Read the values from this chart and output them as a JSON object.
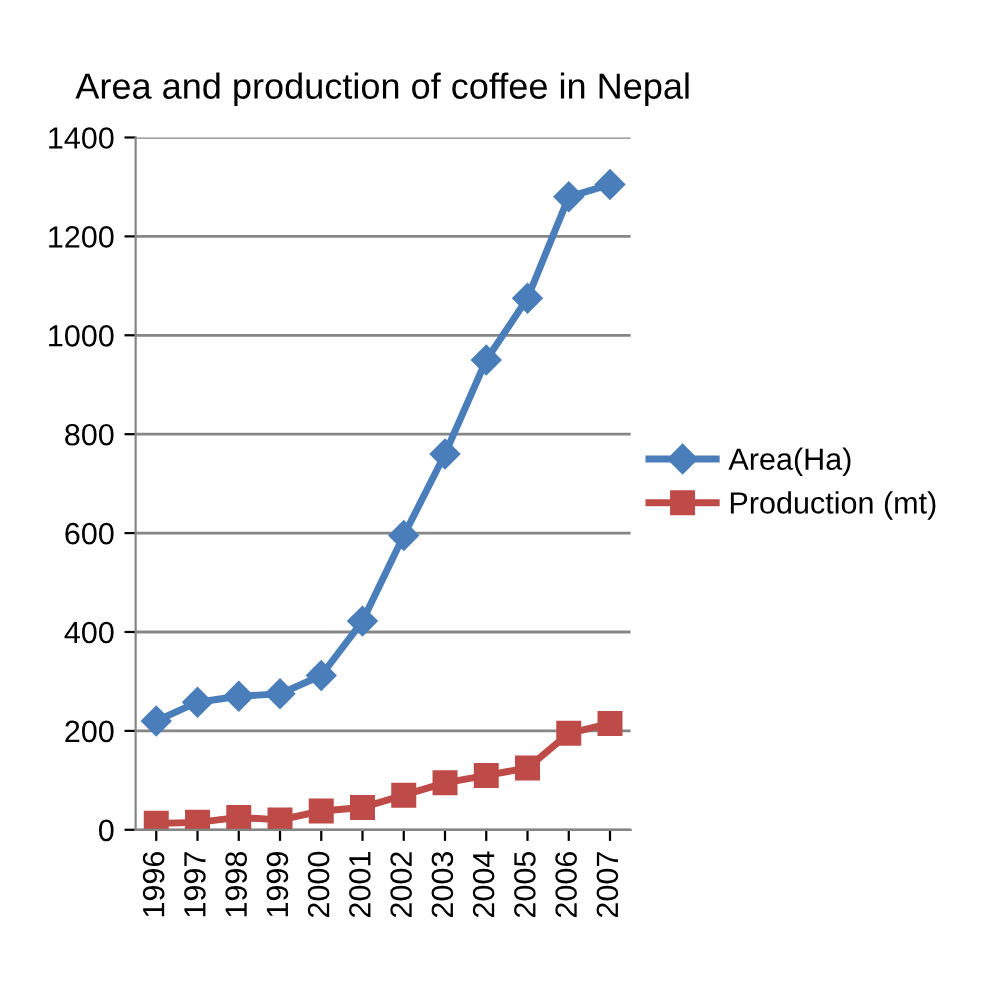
{
  "chart_data": {
    "type": "line",
    "title": "Area and production of coffee in Nepal",
    "categories": [
      "1996",
      "1997",
      "1998",
      "1999",
      "2000",
      "2001",
      "2002",
      "2003",
      "2004",
      "2005",
      "2006",
      "2007"
    ],
    "series": [
      {
        "name": "Area(Ha)",
        "color": "#4a7ebb",
        "marker": "diamond",
        "values": [
          220,
          258,
          270,
          275,
          312,
          422,
          595,
          760,
          950,
          1075,
          1280,
          1305
        ]
      },
      {
        "name": "Production (mt)",
        "color": "#be4b48",
        "marker": "square",
        "values": [
          13,
          15,
          25,
          20,
          38,
          45,
          70,
          95,
          110,
          125,
          195,
          215
        ]
      }
    ],
    "ylim": [
      0,
      1400
    ],
    "yticks": [
      0,
      200,
      400,
      600,
      800,
      1000,
      1200,
      1400
    ],
    "grid": "y",
    "legend": "right",
    "line_style": "solid"
  }
}
